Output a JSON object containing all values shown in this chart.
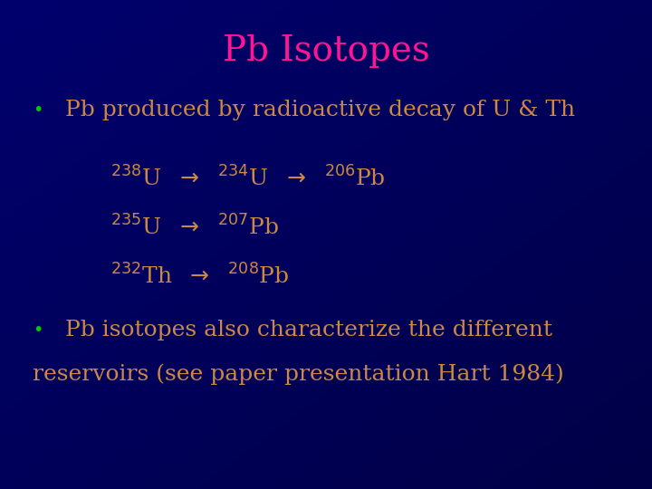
{
  "title": "Pb Isotopes",
  "title_color": "#FF1493",
  "title_fontsize": 28,
  "bg_color": "#000060",
  "bullet_color": "#00CC00",
  "text_color": "#CC8844",
  "bullet1": "Pb produced by radioactive decay of U & Th",
  "bullet2_line1": "Pb isotopes also characterize the different",
  "bullet2_line2": "reservoirs (see paper presentation Hart 1984)",
  "body_fontsize": 18,
  "decay_fontsize": 18,
  "super_fontsize": 12,
  "bullet_fontsize": 14,
  "decay_lines": [
    "$^{238}$U  $\\rightarrow$  $^{234}$U  $\\rightarrow$  $^{206}$Pb",
    "$^{235}$U  $\\rightarrow$  $^{207}$Pb",
    "$^{232}$Th  $\\rightarrow$  $^{208}$Pb"
  ]
}
